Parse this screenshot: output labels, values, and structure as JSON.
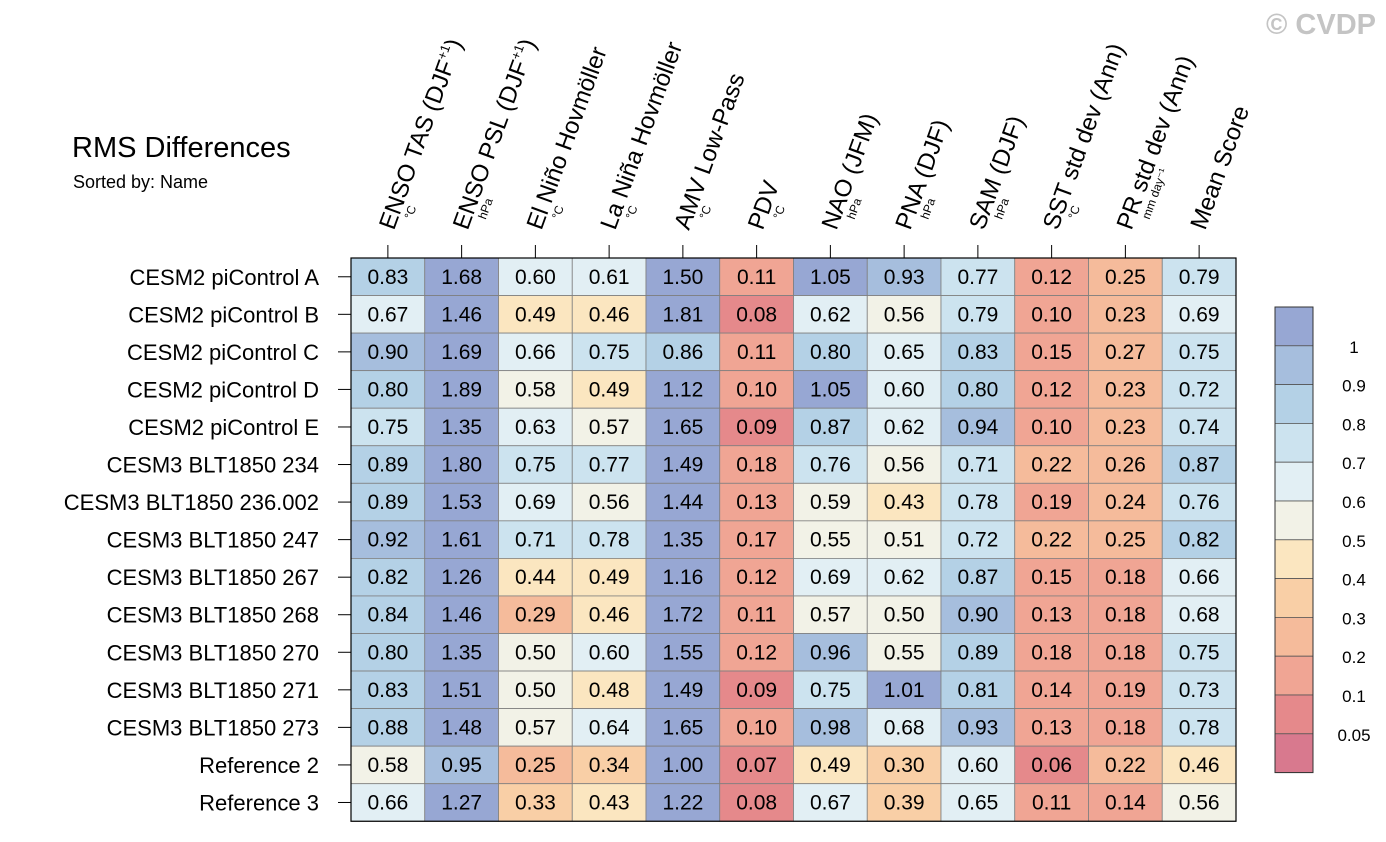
{
  "watermark": "© CVDP",
  "chart_data": {
    "type": "heatmap",
    "title": "RMS Differences",
    "subtitle": "Sorted by: Name",
    "columns": [
      {
        "label": "ENSO TAS (DJF",
        "sup": "+1",
        "close": ")",
        "unit": "°C"
      },
      {
        "label": "ENSO PSL (DJF",
        "sup": "+1",
        "close": ")",
        "unit": "hPa"
      },
      {
        "label": "El Niño Hovmöller",
        "sup": "",
        "close": "",
        "unit": "°C"
      },
      {
        "label": "La Niña Hovmöller",
        "sup": "",
        "close": "",
        "unit": "°C"
      },
      {
        "label": "AMV Low-Pass",
        "sup": "",
        "close": "",
        "unit": "°C"
      },
      {
        "label": "PDV",
        "sup": "",
        "close": "",
        "unit": "°C"
      },
      {
        "label": "NAO (JFM)",
        "sup": "",
        "close": "",
        "unit": "hPa"
      },
      {
        "label": "PNA (DJF)",
        "sup": "",
        "close": "",
        "unit": "hPa"
      },
      {
        "label": "SAM (DJF)",
        "sup": "",
        "close": "",
        "unit": "hPa"
      },
      {
        "label": "SST std dev (Ann)",
        "sup": "",
        "close": "",
        "unit": "°C"
      },
      {
        "label": "PR std dev (Ann)",
        "sup": "",
        "close": "",
        "unit": "mm day⁻¹"
      },
      {
        "label": "Mean Score",
        "sup": "",
        "close": "",
        "unit": ""
      }
    ],
    "rows": [
      "CESM2 piControl A",
      "CESM2 piControl B",
      "CESM2 piControl C",
      "CESM2 piControl D",
      "CESM2 piControl E",
      "CESM3 BLT1850 234",
      "CESM3 BLT1850 236.002",
      "CESM3 BLT1850 247",
      "CESM3 BLT1850 267",
      "CESM3 BLT1850 268",
      "CESM3 BLT1850 270",
      "CESM3 BLT1850 271",
      "CESM3 BLT1850 273",
      "Reference 2",
      "Reference 3"
    ],
    "values": [
      [
        0.83,
        1.68,
        0.6,
        0.61,
        1.5,
        0.11,
        1.05,
        0.93,
        0.77,
        0.12,
        0.25,
        0.79
      ],
      [
        0.67,
        1.46,
        0.49,
        0.46,
        1.81,
        0.08,
        0.62,
        0.56,
        0.79,
        0.1,
        0.23,
        0.69
      ],
      [
        0.9,
        1.69,
        0.66,
        0.75,
        0.86,
        0.11,
        0.8,
        0.65,
        0.83,
        0.15,
        0.27,
        0.75
      ],
      [
        0.8,
        1.89,
        0.58,
        0.49,
        1.12,
        0.1,
        1.05,
        0.6,
        0.8,
        0.12,
        0.23,
        0.72
      ],
      [
        0.75,
        1.35,
        0.63,
        0.57,
        1.65,
        0.09,
        0.87,
        0.62,
        0.94,
        0.1,
        0.23,
        0.74
      ],
      [
        0.89,
        1.8,
        0.75,
        0.77,
        1.49,
        0.18,
        0.76,
        0.56,
        0.71,
        0.22,
        0.26,
        0.87
      ],
      [
        0.89,
        1.53,
        0.69,
        0.56,
        1.44,
        0.13,
        0.59,
        0.43,
        0.78,
        0.19,
        0.24,
        0.76
      ],
      [
        0.92,
        1.61,
        0.71,
        0.78,
        1.35,
        0.17,
        0.55,
        0.51,
        0.72,
        0.22,
        0.25,
        0.82
      ],
      [
        0.82,
        1.26,
        0.44,
        0.49,
        1.16,
        0.12,
        0.69,
        0.62,
        0.87,
        0.15,
        0.18,
        0.66
      ],
      [
        0.84,
        1.46,
        0.29,
        0.46,
        1.72,
        0.11,
        0.57,
        0.5,
        0.9,
        0.13,
        0.18,
        0.68
      ],
      [
        0.8,
        1.35,
        0.5,
        0.6,
        1.55,
        0.12,
        0.96,
        0.55,
        0.89,
        0.18,
        0.18,
        0.75
      ],
      [
        0.83,
        1.51,
        0.5,
        0.48,
        1.49,
        0.09,
        0.75,
        1.01,
        0.81,
        0.14,
        0.19,
        0.73
      ],
      [
        0.88,
        1.48,
        0.57,
        0.64,
        1.65,
        0.1,
        0.98,
        0.68,
        0.93,
        0.13,
        0.18,
        0.78
      ],
      [
        0.58,
        0.95,
        0.25,
        0.34,
        1.0,
        0.07,
        0.49,
        0.3,
        0.6,
        0.06,
        0.22,
        0.46
      ],
      [
        0.66,
        1.27,
        0.33,
        0.43,
        1.22,
        0.08,
        0.67,
        0.39,
        0.65,
        0.11,
        0.14,
        0.56
      ]
    ],
    "colorbar": {
      "levels": [
        0.05,
        0.1,
        0.2,
        0.3,
        0.4,
        0.5,
        0.6,
        0.7,
        0.8,
        0.9,
        1
      ],
      "labels": [
        "0.05",
        "0.1",
        "0.2",
        "0.3",
        "0.4",
        "0.5",
        "0.6",
        "0.7",
        "0.8",
        "0.9",
        "1"
      ],
      "colors": [
        "#d8798e",
        "#e5898b",
        "#f0a594",
        "#f5bb9b",
        "#f9cfa6",
        "#fbe6c0",
        "#f2f2e7",
        "#e2eff4",
        "#cce3ef",
        "#b4d1e6",
        "#a6bedd",
        "#97a7d3"
      ]
    }
  }
}
